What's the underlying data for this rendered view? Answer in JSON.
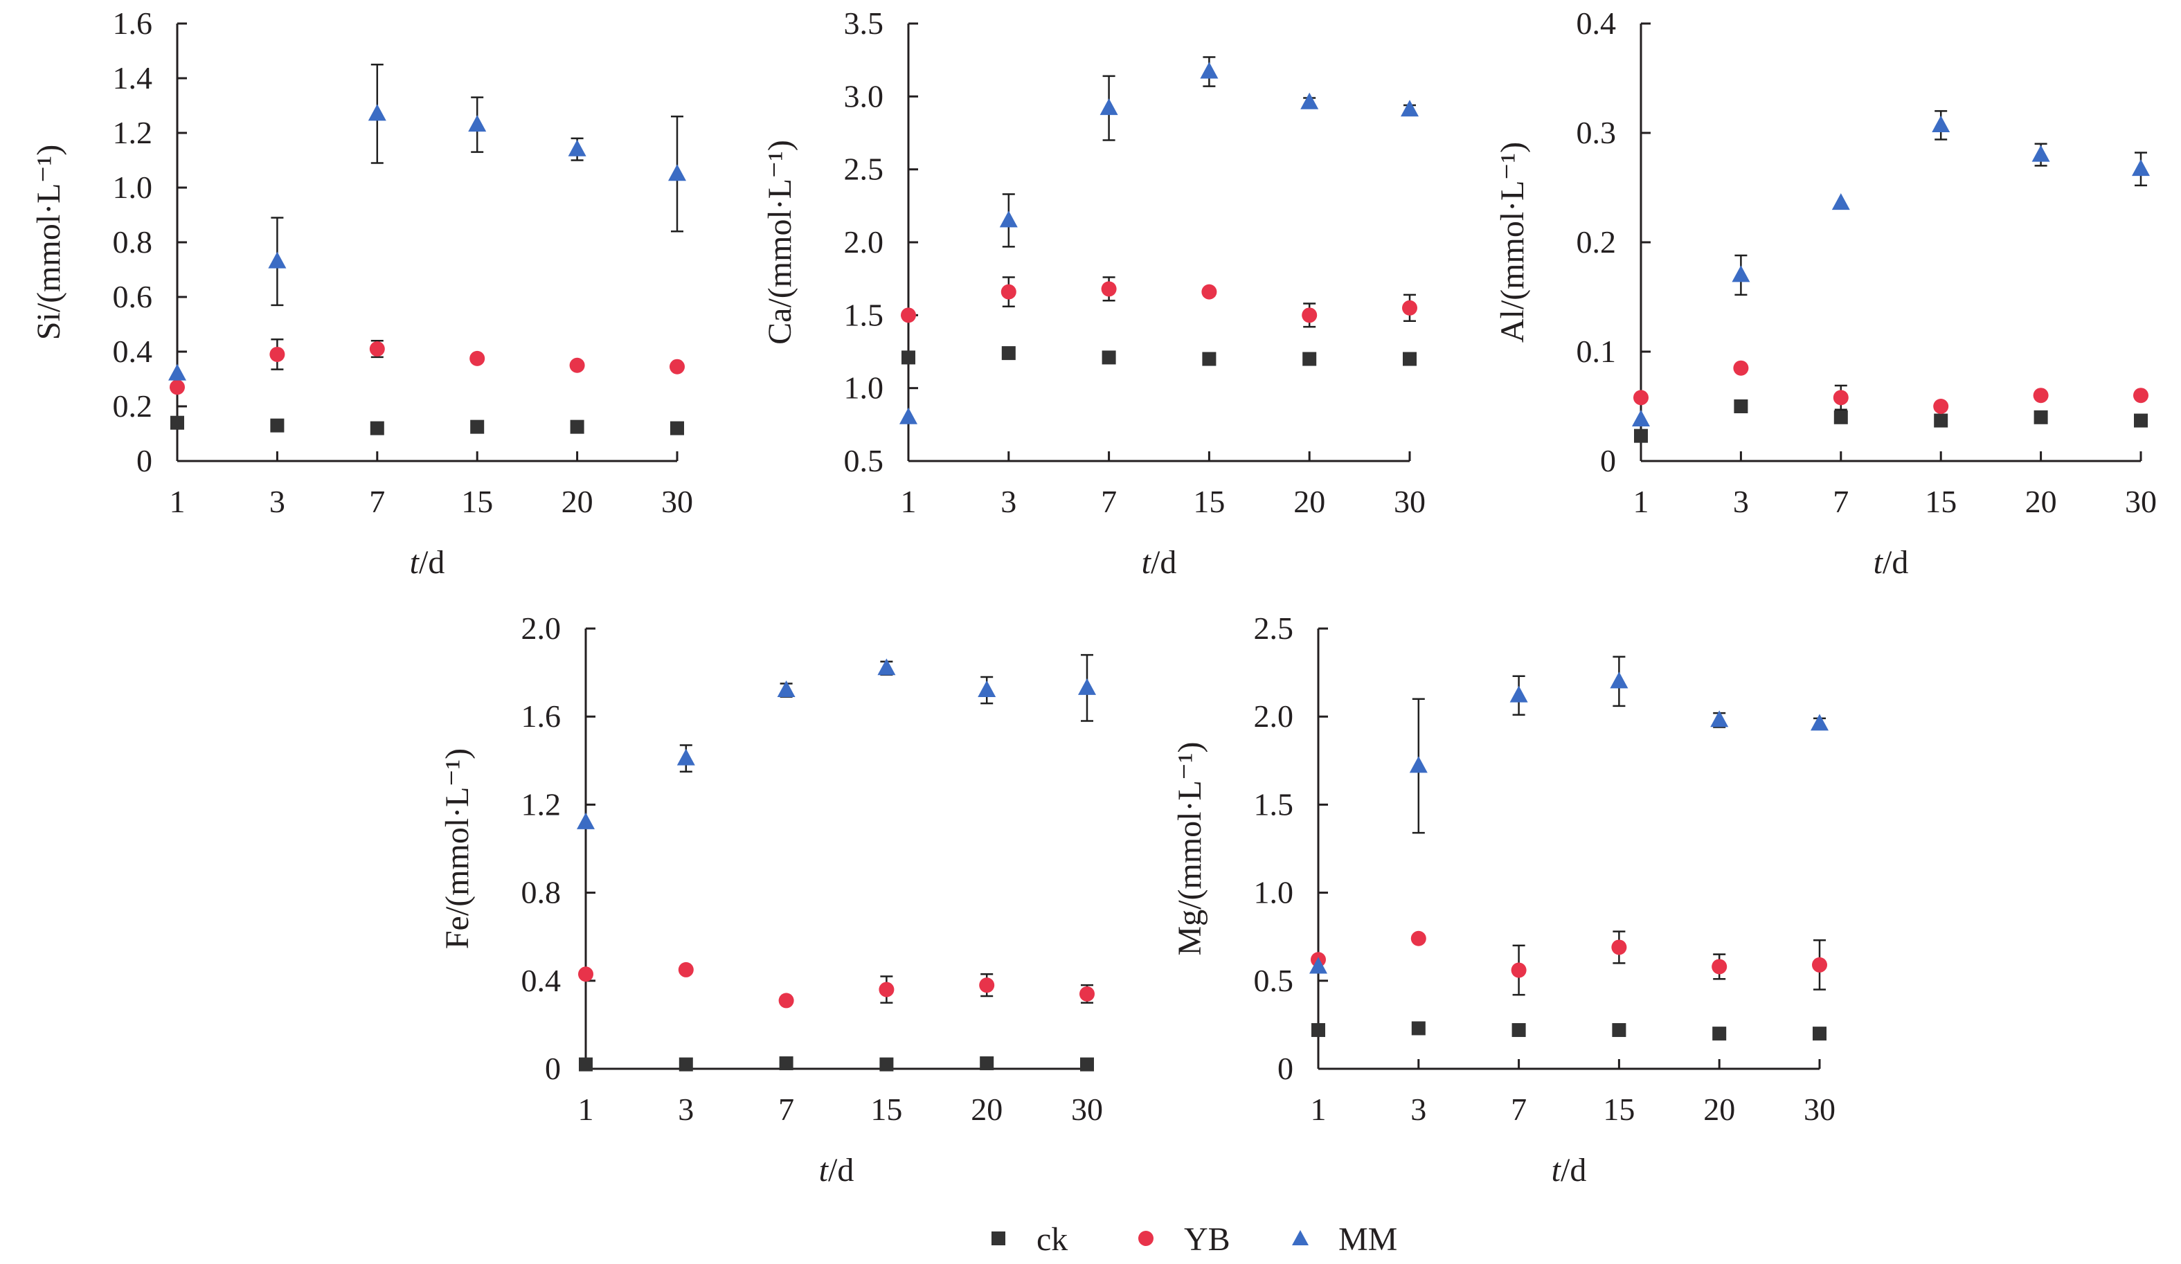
{
  "legend": [
    {
      "name": "ck",
      "color": "#333333",
      "marker": "square"
    },
    {
      "name": "YB",
      "color": "#e8334a",
      "marker": "circle"
    },
    {
      "name": "MM",
      "color": "#3b6cc4",
      "marker": "triangle"
    }
  ],
  "chart_data": [
    {
      "type": "scatter",
      "categories": [
        "1",
        "3",
        "7",
        "15",
        "20",
        "30"
      ],
      "xlabel_italic": "t",
      "xlabel_rest": "/d",
      "ylabel": "Si/(mmol·L⁻¹)",
      "ylim": [
        0,
        1.6
      ],
      "yticks": [
        "0",
        "0.2",
        "0.4",
        "0.6",
        "0.8",
        "1.0",
        "1.2",
        "1.4",
        "1.6"
      ],
      "ytick_values": [
        0,
        0.2,
        0.4,
        0.6,
        0.8,
        1.0,
        1.2,
        1.4,
        1.6
      ],
      "series": [
        {
          "name": "ck",
          "values": [
            0.14,
            0.13,
            0.12,
            0.125,
            0.125,
            0.12
          ],
          "errors": [
            0.02,
            0.01,
            0.01,
            0.01,
            0.01,
            0.01
          ]
        },
        {
          "name": "YB",
          "values": [
            0.27,
            0.39,
            0.41,
            0.375,
            0.35,
            0.345
          ],
          "errors": [
            0.0,
            0.055,
            0.03,
            0.0,
            0.0,
            0.0
          ]
        },
        {
          "name": "MM",
          "values": [
            0.32,
            0.73,
            1.27,
            1.23,
            1.14,
            1.05
          ],
          "errors": [
            0.0,
            0.16,
            0.18,
            0.1,
            0.04,
            0.21
          ]
        }
      ]
    },
    {
      "type": "scatter",
      "categories": [
        "1",
        "3",
        "7",
        "15",
        "20",
        "30"
      ],
      "xlabel_italic": "t",
      "xlabel_rest": "/d",
      "ylabel": "Ca/(mmol·L⁻¹)",
      "ylim": [
        0.5,
        3.5
      ],
      "yticks": [
        "0.5",
        "1.0",
        "1.5",
        "2.0",
        "2.5",
        "3.0",
        "3.5"
      ],
      "ytick_values": [
        0.5,
        1.0,
        1.5,
        2.0,
        2.5,
        3.0,
        3.5
      ],
      "series": [
        {
          "name": "ck",
          "values": [
            1.21,
            1.24,
            1.21,
            1.2,
            1.2,
            1.2
          ],
          "errors": [
            0.0,
            0.0,
            0.0,
            0.0,
            0.0,
            0.0
          ]
        },
        {
          "name": "YB",
          "values": [
            1.5,
            1.66,
            1.68,
            1.66,
            1.5,
            1.55
          ],
          "errors": [
            0.0,
            0.1,
            0.08,
            0.0,
            0.08,
            0.09
          ]
        },
        {
          "name": "MM",
          "values": [
            0.8,
            2.15,
            2.92,
            3.17,
            2.96,
            2.91
          ],
          "errors": [
            0.0,
            0.18,
            0.22,
            0.1,
            0.03,
            0.03
          ]
        }
      ]
    },
    {
      "type": "scatter",
      "categories": [
        "1",
        "3",
        "7",
        "15",
        "20",
        "30"
      ],
      "xlabel_italic": "t",
      "xlabel_rest": "/d",
      "ylabel": "Al/(mmol·L⁻¹)",
      "ylim": [
        0,
        0.4
      ],
      "yticks": [
        "0",
        "0.1",
        "0.2",
        "0.3",
        "0.4"
      ],
      "ytick_values": [
        0,
        0.1,
        0.2,
        0.3,
        0.4
      ],
      "series": [
        {
          "name": "ck",
          "values": [
            0.023,
            0.05,
            0.04,
            0.037,
            0.04,
            0.037
          ],
          "errors": [
            0.0,
            0.0,
            0.0,
            0.0,
            0.0,
            0.004
          ]
        },
        {
          "name": "YB",
          "values": [
            0.058,
            0.085,
            0.058,
            0.05,
            0.06,
            0.06
          ],
          "errors": [
            0.0,
            0.0,
            0.011,
            0.0,
            0.0,
            0.0
          ]
        },
        {
          "name": "MM",
          "values": [
            0.038,
            0.17,
            0.236,
            0.307,
            0.28,
            0.267
          ],
          "errors": [
            0.0,
            0.018,
            0.0,
            0.013,
            0.01,
            0.015
          ]
        }
      ]
    },
    {
      "type": "scatter",
      "categories": [
        "1",
        "3",
        "7",
        "15",
        "20",
        "30"
      ],
      "xlabel_italic": "t",
      "xlabel_rest": "/d",
      "ylabel": "Fe/(mmol·L⁻¹)",
      "ylim": [
        0,
        2.0
      ],
      "yticks": [
        "0",
        "0.4",
        "0.8",
        "1.2",
        "1.6",
        "2.0"
      ],
      "ytick_values": [
        0,
        0.4,
        0.8,
        1.2,
        1.6,
        2.0
      ],
      "series": [
        {
          "name": "ck",
          "values": [
            0.02,
            0.02,
            0.025,
            0.02,
            0.025,
            0.02
          ],
          "errors": [
            0.0,
            0.0,
            0.0,
            0.0,
            0.0,
            0.0
          ]
        },
        {
          "name": "YB",
          "values": [
            0.43,
            0.45,
            0.31,
            0.36,
            0.38,
            0.34
          ],
          "errors": [
            0.0,
            0.0,
            0.0,
            0.06,
            0.05,
            0.04
          ]
        },
        {
          "name": "MM",
          "values": [
            1.12,
            1.41,
            1.72,
            1.82,
            1.72,
            1.73
          ],
          "errors": [
            0.0,
            0.06,
            0.03,
            0.03,
            0.06,
            0.15
          ]
        }
      ]
    },
    {
      "type": "scatter",
      "categories": [
        "1",
        "3",
        "7",
        "15",
        "20",
        "30"
      ],
      "xlabel_italic": "t",
      "xlabel_rest": "/d",
      "ylabel": "Mg/(mmol·L⁻¹)",
      "ylim": [
        0,
        2.5
      ],
      "yticks": [
        "0",
        "0.5",
        "1.0",
        "1.5",
        "2.0",
        "2.5"
      ],
      "ytick_values": [
        0,
        0.5,
        1.0,
        1.5,
        2.0,
        2.5
      ],
      "series": [
        {
          "name": "ck",
          "values": [
            0.22,
            0.23,
            0.22,
            0.22,
            0.2,
            0.2
          ],
          "errors": [
            0.0,
            0.0,
            0.0,
            0.0,
            0.0,
            0.0
          ]
        },
        {
          "name": "YB",
          "values": [
            0.62,
            0.74,
            0.56,
            0.69,
            0.58,
            0.59
          ],
          "errors": [
            0.0,
            0.0,
            0.14,
            0.09,
            0.07,
            0.14
          ]
        },
        {
          "name": "MM",
          "values": [
            0.58,
            1.72,
            2.12,
            2.2,
            1.98,
            1.96
          ],
          "errors": [
            0.0,
            0.38,
            0.11,
            0.14,
            0.04,
            0.03
          ]
        }
      ]
    }
  ]
}
